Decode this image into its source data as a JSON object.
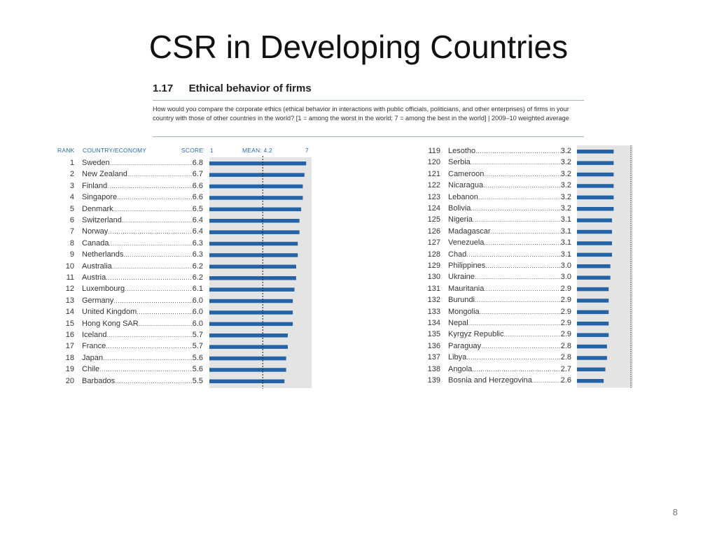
{
  "slide": {
    "title": "CSR in Developing Countries",
    "page_number": "8"
  },
  "figure": {
    "number": "1.17",
    "title": "Ethical behavior of firms",
    "question": "How would you compare the corporate ethics (ethical behavior in interactions with public officials, politicians, and other enterprises) of firms in your country with those of other countries in the world? [1 = among the worst in the world; 7 = among the best in the world]  |  2009–10 weighted average",
    "headers": {
      "rank": "RANK",
      "country": "COUNTRY/ECONOMY",
      "score": "SCORE",
      "axis_min": "1",
      "mean": "MEAN: 4.2",
      "axis_max": "7"
    }
  },
  "colors": {
    "bar": "#2464a6",
    "panel": "#e4e4e4",
    "header": "#2c6aa8",
    "rule": "#9fb3c8"
  },
  "chart_data": [
    {
      "type": "bar",
      "orientation": "horizontal",
      "title": "Ethical behavior of firms",
      "xlim": [
        1,
        7
      ],
      "mean": 4.2,
      "ranks": [
        1,
        2,
        3,
        4,
        5,
        6,
        7,
        8,
        9,
        10,
        11,
        12,
        13,
        14,
        15,
        16,
        17,
        18,
        19,
        20
      ],
      "categories": [
        "Sweden",
        "New Zealand",
        "Finland",
        "Singapore",
        "Denmark",
        "Switzerland",
        "Norway",
        "Canada",
        "Netherlands",
        "Australia",
        "Austria",
        "Luxembourg",
        "Germany",
        "United Kingdom",
        "Hong Kong SAR",
        "Iceland",
        "France",
        "Japan",
        "Chile",
        "Barbados"
      ],
      "values": [
        6.8,
        6.7,
        6.6,
        6.6,
        6.5,
        6.4,
        6.4,
        6.3,
        6.3,
        6.2,
        6.2,
        6.1,
        6.0,
        6.0,
        6.0,
        5.7,
        5.7,
        5.6,
        5.6,
        5.5
      ]
    },
    {
      "type": "bar",
      "orientation": "horizontal",
      "xlim": [
        1,
        7
      ],
      "ranks": [
        119,
        120,
        121,
        122,
        123,
        124,
        125,
        126,
        127,
        128,
        129,
        130,
        131,
        132,
        133,
        134,
        135,
        136,
        137,
        138,
        139
      ],
      "categories": [
        "Lesotho",
        "Serbia",
        "Cameroon",
        "Nicaragua",
        "Lebanon",
        "Bolivia",
        "Nigeria",
        "Madagascar",
        "Venezuela",
        "Chad",
        "Philippines",
        "Ukraine",
        "Mauritania",
        "Burundi",
        "Mongolia",
        "Nepal",
        "Kyrgyz Republic",
        "Paraguay",
        "Libya",
        "Angola",
        "Bosnia and Herzegovina"
      ],
      "values": [
        3.2,
        3.2,
        3.2,
        3.2,
        3.2,
        3.2,
        3.1,
        3.1,
        3.1,
        3.1,
        3.0,
        3.0,
        2.9,
        2.9,
        2.9,
        2.9,
        2.9,
        2.8,
        2.8,
        2.7,
        2.6
      ]
    }
  ]
}
